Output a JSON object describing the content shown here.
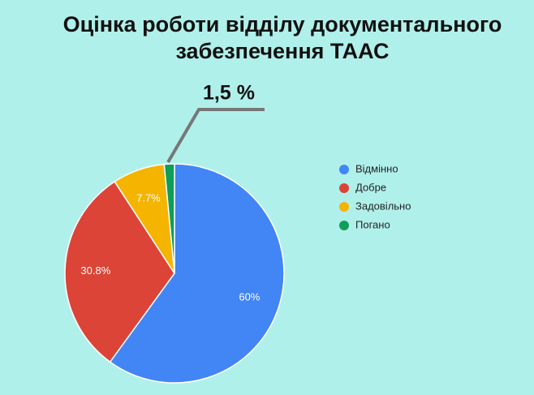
{
  "chart_data": {
    "type": "pie",
    "title": "Оцінка роботи відділу документального забезпечення ТААС",
    "categories": [
      "Відмінно",
      "Добре",
      "Задовільно",
      "Погано"
    ],
    "values": [
      60,
      30.8,
      7.7,
      1.5
    ],
    "value_labels": [
      "60%",
      "30.8%",
      "7.7%",
      "1,5 %"
    ],
    "colors": [
      "#4285f4",
      "#db4437",
      "#f4b400",
      "#0f9d58"
    ],
    "legend": "right"
  }
}
